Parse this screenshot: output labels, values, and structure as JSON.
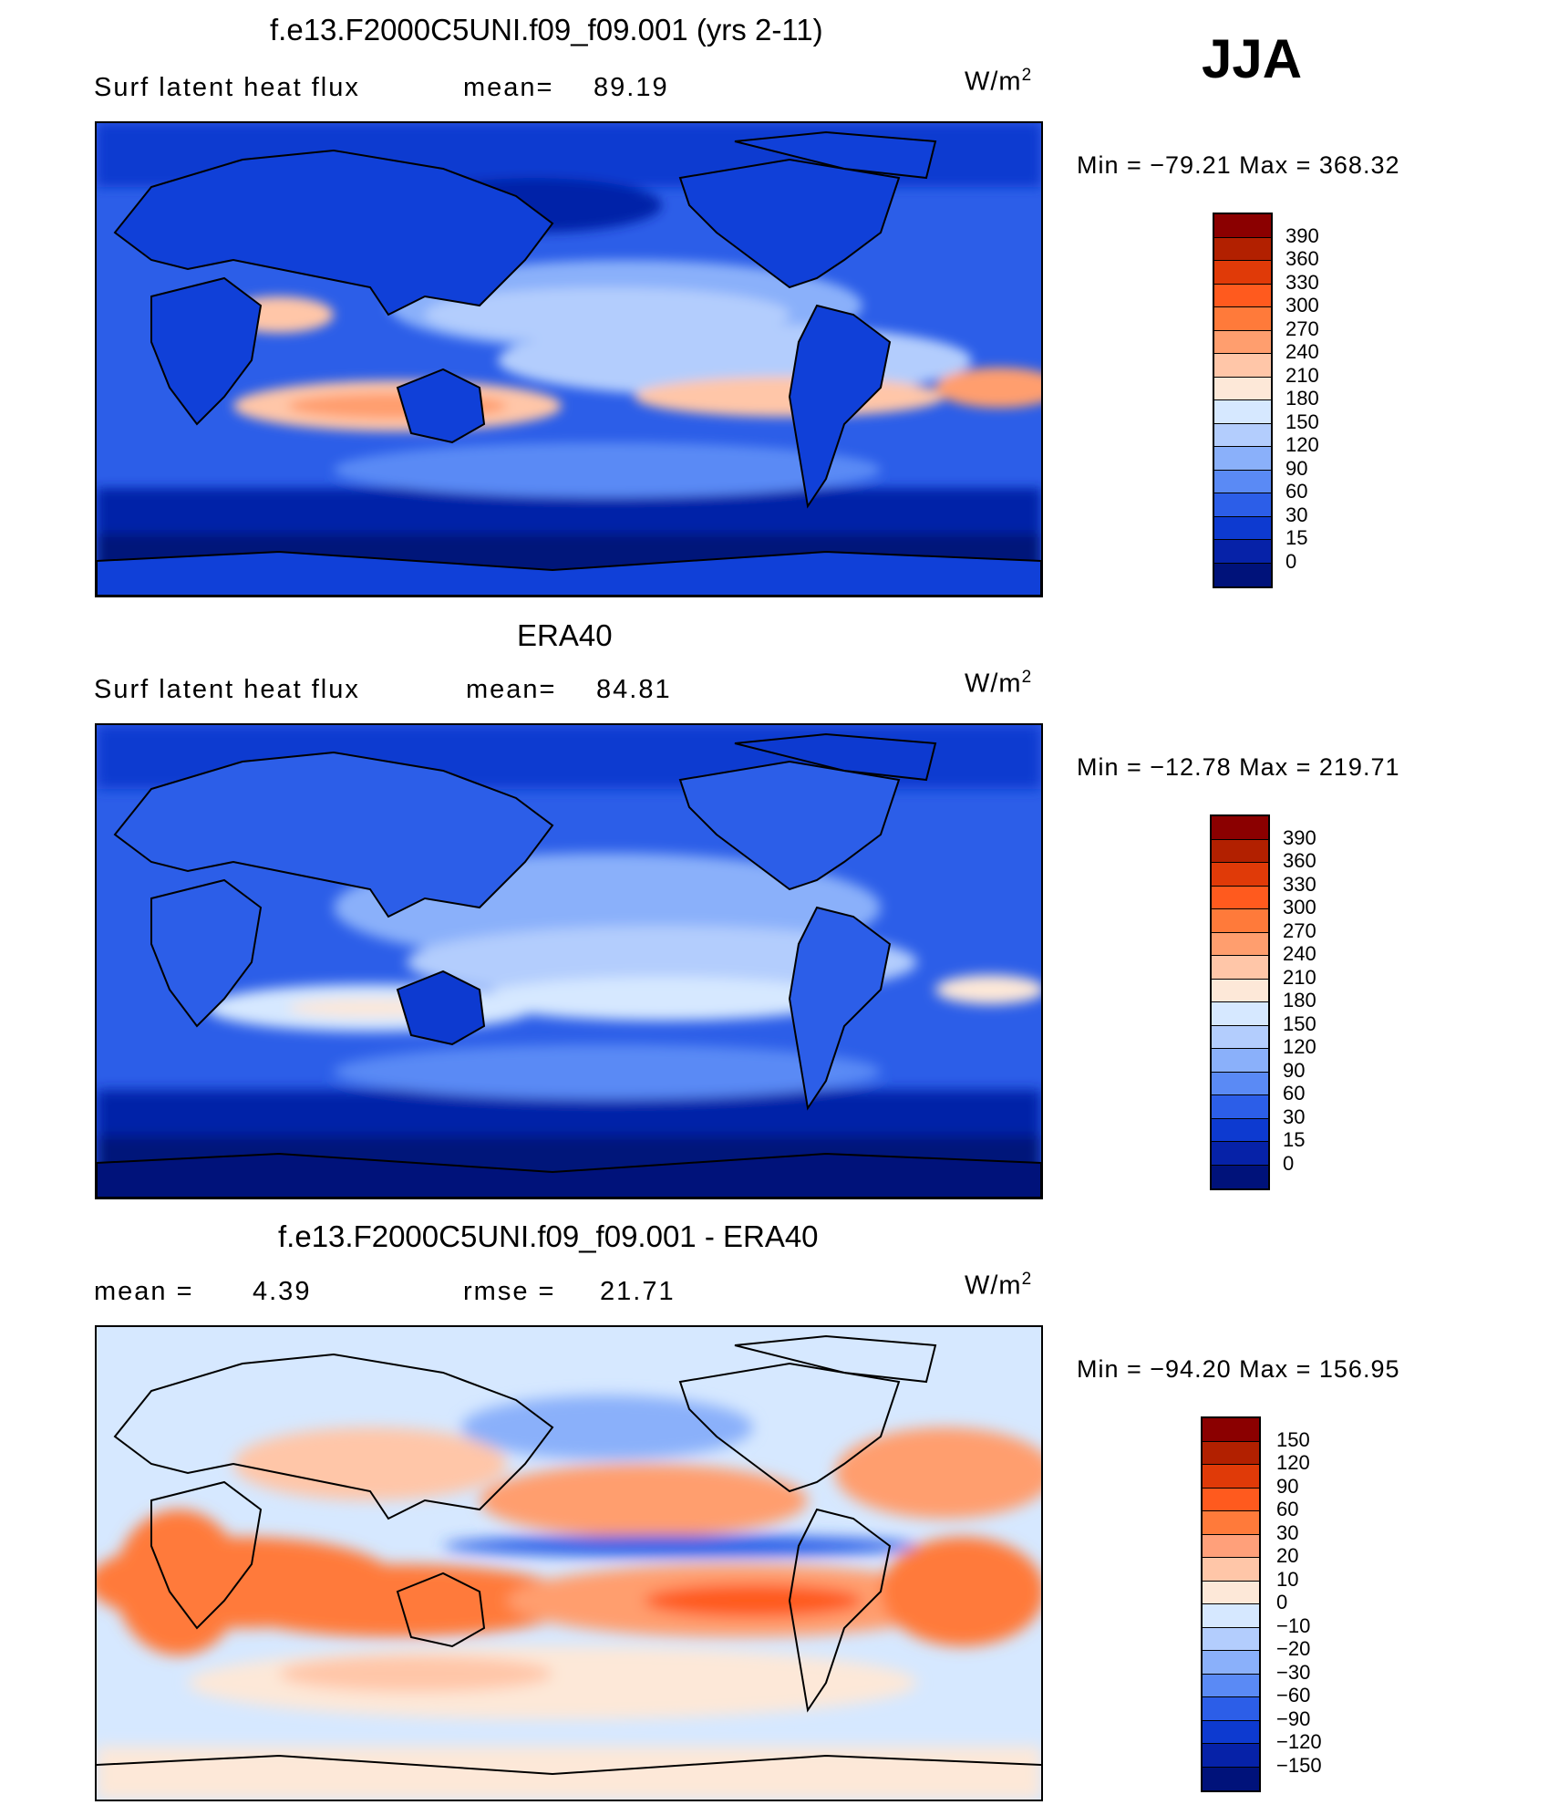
{
  "season": "JJA",
  "panels": [
    {
      "id": "model",
      "title": "f.e13.F2000C5UNI.f09_f09.001 (yrs 2-11)",
      "left_label": "Surf latent heat flux",
      "stat_label": "mean=",
      "stat_value": "89.19",
      "stat2_label": "",
      "stat2_value": "",
      "units": "W/m",
      "units_sup": "2",
      "min_text": "Min = −79.21 Max = 368.32",
      "palette": "abs",
      "colorbar_labels": [
        "390",
        "360",
        "330",
        "300",
        "270",
        "240",
        "210",
        "180",
        "150",
        "120",
        "90",
        "60",
        "30",
        "15",
        "0"
      ]
    },
    {
      "id": "obs",
      "title": "ERA40",
      "left_label": "Surf latent heat flux",
      "stat_label": "mean=",
      "stat_value": "84.81",
      "stat2_label": "",
      "stat2_value": "",
      "units": "W/m",
      "units_sup": "2",
      "min_text": "Min = −12.78 Max = 219.71",
      "palette": "abs",
      "colorbar_labels": [
        "390",
        "360",
        "330",
        "300",
        "270",
        "240",
        "210",
        "180",
        "150",
        "120",
        "90",
        "60",
        "30",
        "15",
        "0"
      ]
    },
    {
      "id": "diff",
      "title": "f.e13.F2000C5UNI.f09_f09.001 - ERA40",
      "left_label": "mean =",
      "stat_label": "",
      "stat_value": "4.39",
      "stat2_label": "rmse =",
      "stat2_value": "21.71",
      "units": "W/m",
      "units_sup": "2",
      "min_text": "Min = −94.20 Max = 156.95",
      "palette": "diff",
      "colorbar_labels": [
        "150",
        "120",
        "90",
        "60",
        "30",
        "20",
        "10",
        "0",
        "−10",
        "−20",
        "−30",
        "−60",
        "−90",
        "−120",
        "−150"
      ]
    }
  ],
  "colors": {
    "abs": [
      "#8b0000",
      "#b22000",
      "#e03a08",
      "#ff5a1e",
      "#ff7a3a",
      "#ff9e6e",
      "#ffc6a8",
      "#fde8d8",
      "#d6e8ff",
      "#b3cdfd",
      "#8ab0fa",
      "#5a8af5",
      "#2c5ee8",
      "#0d3ad0",
      "#0622a8",
      "#00127a"
    ],
    "diff": [
      "#8b0000",
      "#b22000",
      "#e03a08",
      "#ff5a1e",
      "#ff7a3a",
      "#ffa07a",
      "#ffc6a8",
      "#fde8d8",
      "#d6e8ff",
      "#b3cdfd",
      "#8ab0fa",
      "#5a8af5",
      "#2c5ee8",
      "#0d3ad0",
      "#0622a8",
      "#00127a"
    ]
  }
}
